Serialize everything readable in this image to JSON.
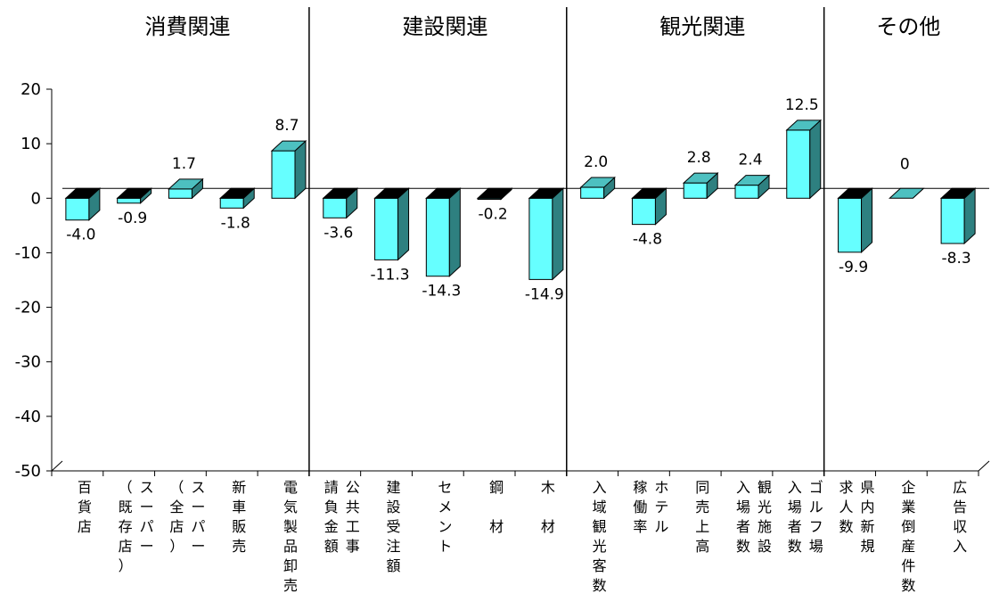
{
  "chart_data": {
    "type": "bar",
    "ylim": [
      -50,
      20
    ],
    "yticks": [
      "20",
      "10",
      "0",
      "-10",
      "-20",
      "-30",
      "-40",
      "-50"
    ],
    "groups": [
      {
        "label": "消費関連",
        "start": 0,
        "end": 4
      },
      {
        "label": "建設関連",
        "start": 5,
        "end": 9
      },
      {
        "label": "観光関連",
        "start": 10,
        "end": 14
      },
      {
        "label": "その他",
        "start": 15,
        "end": 17
      }
    ],
    "categories": [
      {
        "label": "百貨店",
        "lines": [
          "百貨店"
        ]
      },
      {
        "label": "スーパー（既存店）",
        "lines": [
          "（既存店）",
          "スーパー"
        ]
      },
      {
        "label": "スーパー（全店）",
        "lines": [
          "（全店）",
          "スーパー"
        ]
      },
      {
        "label": "新車販売",
        "lines": [
          "新車販売"
        ]
      },
      {
        "label": "電気製品卸売",
        "lines": [
          "電気製品卸売"
        ]
      },
      {
        "label": "公共工事請負金額",
        "lines": [
          "請負金額",
          "公共工事"
        ]
      },
      {
        "label": "建設受注額",
        "lines": [
          "建設受注額"
        ]
      },
      {
        "label": "セメント",
        "lines": [
          "セメント"
        ]
      },
      {
        "label": "鋼材",
        "lines": [
          "鋼　材"
        ]
      },
      {
        "label": "木材",
        "lines": [
          "木　材"
        ]
      },
      {
        "label": "入域観光客数",
        "lines": [
          "入域観光客数"
        ]
      },
      {
        "label": "ホテル稼働率",
        "lines": [
          "稼働率",
          "ホテル"
        ]
      },
      {
        "label": "同売上高",
        "lines": [
          "同売上高"
        ]
      },
      {
        "label": "観光施設入場者数",
        "lines": [
          "入場者数",
          "観光施設"
        ]
      },
      {
        "label": "ゴルフ場入場者数",
        "lines": [
          "入場者数",
          "ゴルフ場"
        ]
      },
      {
        "label": "県内新規求人数",
        "lines": [
          "求人数",
          "県内新規"
        ]
      },
      {
        "label": "企業倒産件数",
        "lines": [
          "企業倒産件数"
        ]
      },
      {
        "label": "広告収入",
        "lines": [
          "広告収入"
        ]
      }
    ],
    "values": [
      -4.0,
      -0.9,
      1.7,
      -1.8,
      8.7,
      -3.6,
      -11.3,
      -14.3,
      -0.2,
      -14.9,
      2.0,
      -4.8,
      2.8,
      2.4,
      12.5,
      -9.9,
      0,
      -8.3
    ],
    "value_labels": [
      "-4.0",
      "-0.9",
      "1.7",
      "-1.8",
      "8.7",
      "-3.6",
      "-11.3",
      "-14.3",
      "-0.2",
      "-14.9",
      "2.0",
      "-4.8",
      "2.8",
      "2.4",
      "12.5",
      "-9.9",
      "0",
      "-8.3"
    ],
    "colors": {
      "front": "#66FFFF",
      "side": "#2E8080",
      "top_positive": "#4DC0C0",
      "top_negative": "#000000",
      "axis": "#000000"
    }
  }
}
